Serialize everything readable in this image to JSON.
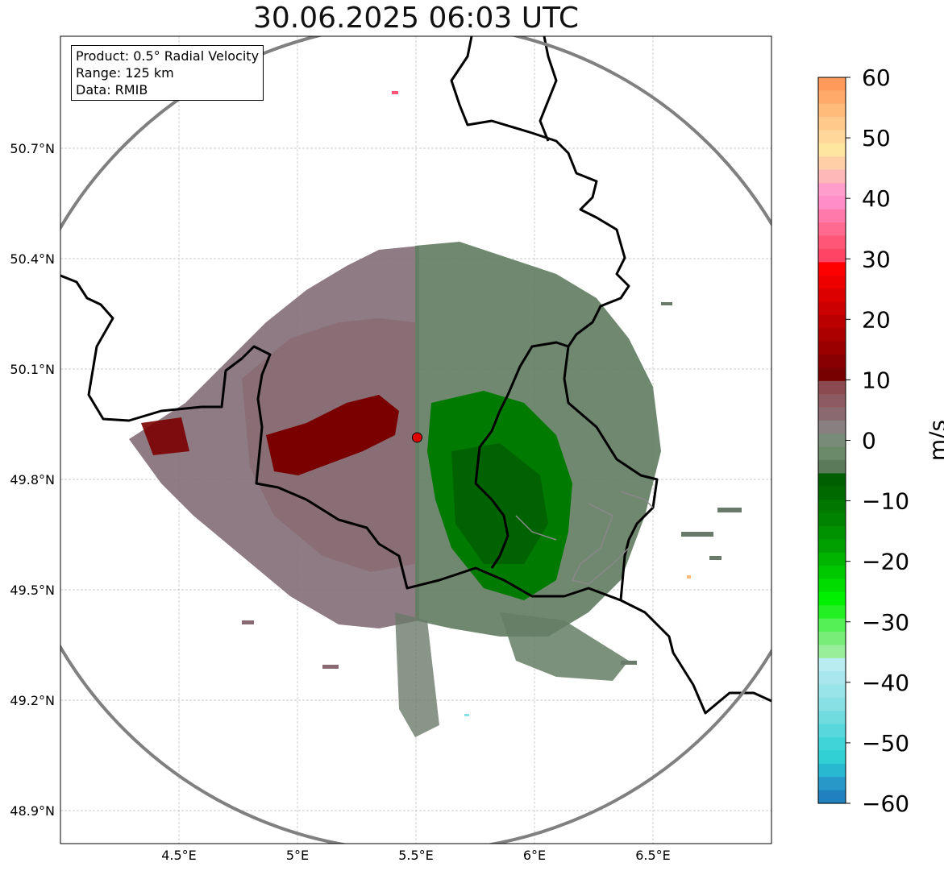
{
  "title": "30.06.2025 06:03 UTC",
  "info": {
    "product": "Product: 0.5° Radial Velocity",
    "range": "Range: 125 km",
    "data": "Data: RMIB"
  },
  "axes": {
    "lat_ticks": [
      {
        "value": 50.7,
        "label": "50.7°N"
      },
      {
        "value": 50.4,
        "label": "50.4°N"
      },
      {
        "value": 50.1,
        "label": "50.1°N"
      },
      {
        "value": 49.8,
        "label": "49.8°N"
      },
      {
        "value": 49.5,
        "label": "49.5°N"
      },
      {
        "value": 49.2,
        "label": "49.2°N"
      },
      {
        "value": 48.9,
        "label": "48.9°N"
      }
    ],
    "lon_ticks": [
      {
        "value": 4.5,
        "label": "4.5°E"
      },
      {
        "value": 5.0,
        "label": "5°E"
      },
      {
        "value": 5.5,
        "label": "5.5°E"
      },
      {
        "value": 6.0,
        "label": "6°E"
      },
      {
        "value": 6.5,
        "label": "6.5°E"
      }
    ],
    "lon_range": [
      4.0,
      7.0
    ],
    "lat_range": [
      48.8,
      51.0
    ],
    "grid": true
  },
  "radar": {
    "site": {
      "lon": 5.505,
      "lat": 49.914
    },
    "range_km": 125
  },
  "colorbar": {
    "unit": "m/s",
    "min": -60,
    "max": 60,
    "ticks": [
      {
        "value": 60,
        "label": "60"
      },
      {
        "value": 50,
        "label": "50"
      },
      {
        "value": 40,
        "label": "40"
      },
      {
        "value": 30,
        "label": "30"
      },
      {
        "value": 20,
        "label": "20"
      },
      {
        "value": 10,
        "label": "10"
      },
      {
        "value": 0,
        "label": "0"
      },
      {
        "value": -10,
        "label": "−10"
      },
      {
        "value": -20,
        "label": "−20"
      },
      {
        "value": -30,
        "label": "−30"
      },
      {
        "value": -40,
        "label": "−40"
      },
      {
        "value": -50,
        "label": "−50"
      },
      {
        "value": -60,
        "label": "−60"
      }
    ],
    "colors_top_to_bottom": [
      "#ff9a5a",
      "#ffaa6a",
      "#ffbb7a",
      "#ffc98a",
      "#ffd79a",
      "#ffe6a0",
      "#ffd0a8",
      "#ffb8b8",
      "#ff9ecc",
      "#ff8ec8",
      "#ff7aaa",
      "#ff6a90",
      "#ff5577",
      "#ff4466",
      "#ff0000",
      "#ee0000",
      "#dd0000",
      "#cc0000",
      "#bb0000",
      "#aa0000",
      "#990000",
      "#880000",
      "#770000",
      "#8a4a50",
      "#8c5a60",
      "#8a6a70",
      "#888080",
      "#788a78",
      "#6a8a6a",
      "#5a7a5a",
      "#006000",
      "#006a00",
      "#007800",
      "#008400",
      "#009200",
      "#00a000",
      "#00b400",
      "#00c800",
      "#00dc00",
      "#00f000",
      "#22f022",
      "#55f055",
      "#77ee77",
      "#99ee99",
      "#b8ecf0",
      "#a8e8ec",
      "#98e4e8",
      "#88e0e4",
      "#70dce0",
      "#58d8dc",
      "#40d4d8",
      "#30d0d4",
      "#28b8d0",
      "#2898c8",
      "#2080c0"
    ]
  }
}
